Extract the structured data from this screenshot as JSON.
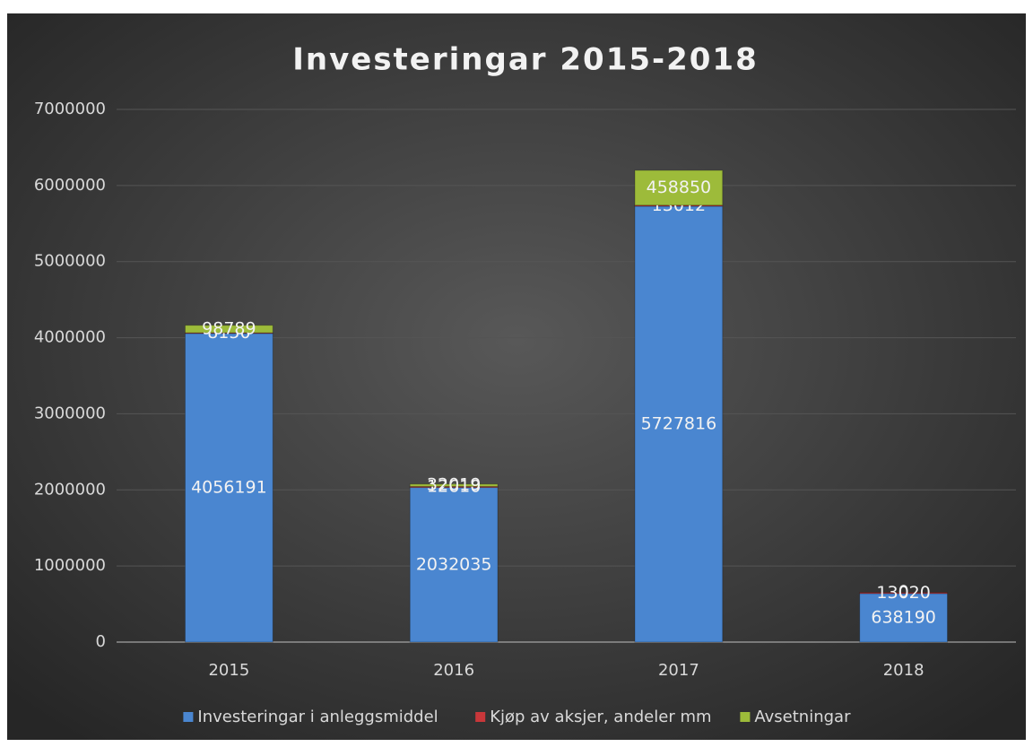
{
  "chart_data": {
    "type": "stacked_bar",
    "title": "Investeringar 2015-2018",
    "categories": [
      "2015",
      "2016",
      "2017",
      "2018"
    ],
    "series": [
      {
        "name": "Investeringar i anleggsmiddel",
        "color": "#4a86d0",
        "values": [
          4056191,
          2032035,
          5727816,
          638190
        ]
      },
      {
        "name": "Kjøp av aksjer, andeler mm",
        "color": "#c9373a",
        "values": [
          8150,
          12610,
          13012,
          13020
        ]
      },
      {
        "name": "Avsetningar",
        "color": "#9dbb3a",
        "values": [
          98789,
          32019,
          458850,
          0
        ]
      }
    ],
    "ylim": [
      0,
      7000000
    ],
    "yticks": [
      0,
      1000000,
      2000000,
      3000000,
      4000000,
      5000000,
      6000000,
      7000000
    ],
    "grid": true,
    "legend": "bottom"
  }
}
